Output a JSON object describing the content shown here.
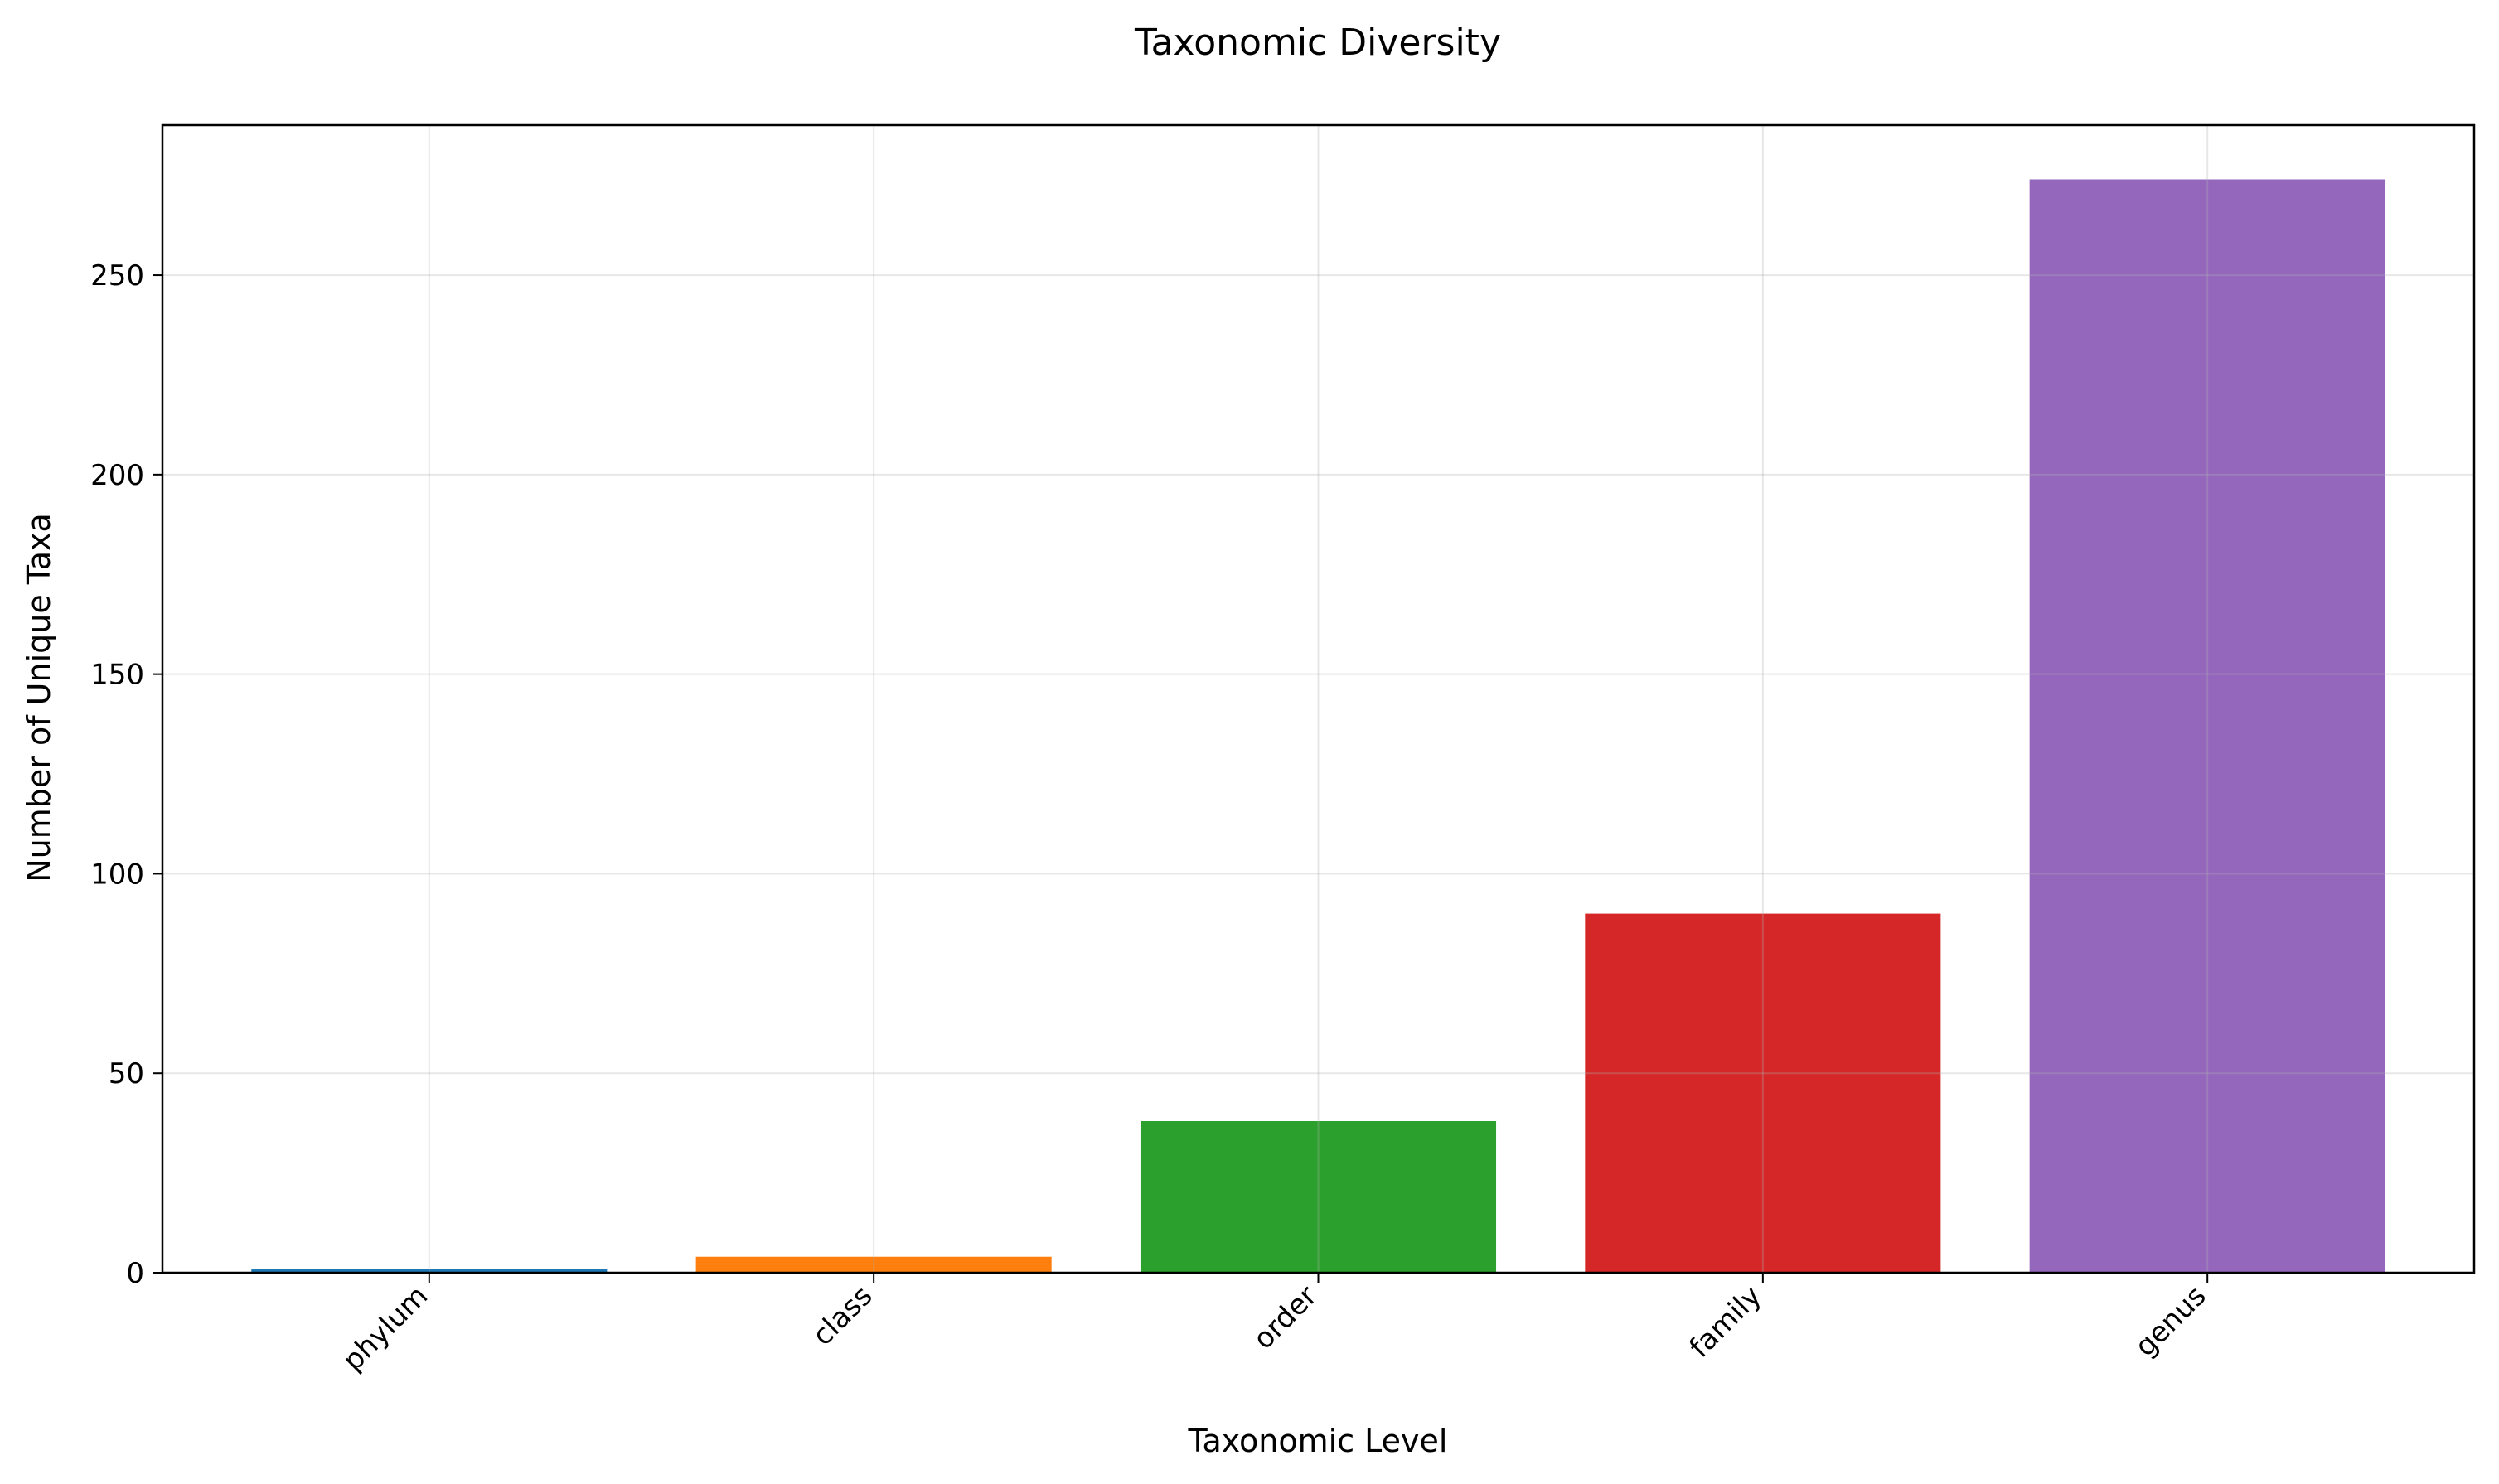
{
  "chart_data": {
    "type": "bar",
    "title": "Taxonomic Diversity",
    "xlabel": "Taxonomic Level",
    "ylabel": "Number of Unique Taxa",
    "categories": [
      "phylum",
      "class",
      "order",
      "family",
      "genus"
    ],
    "values": [
      1,
      4,
      38,
      90,
      274
    ],
    "colors": [
      "#1f77b4",
      "#ff7f0e",
      "#2ca02c",
      "#d62728",
      "#9467bd"
    ],
    "ylim": [
      0,
      287.6
    ],
    "yticks": [
      0,
      50,
      100,
      150,
      200,
      250
    ],
    "grid": true,
    "legend": "none"
  }
}
